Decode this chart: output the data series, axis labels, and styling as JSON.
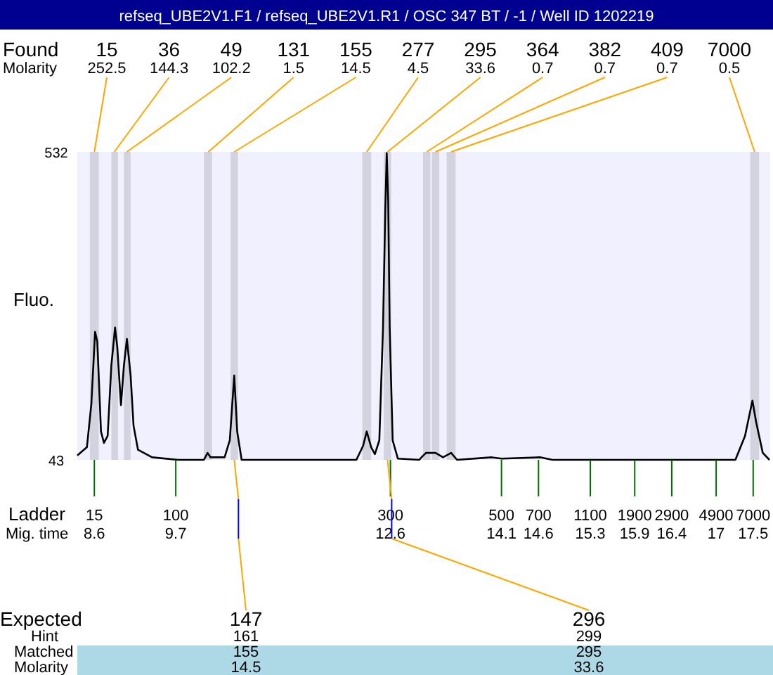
{
  "chart_data": {
    "type": "line",
    "title": "refseq_UBE2V1.F1 / refseq_UBE2V1.R1 / OSC 347 BT / -1 / Well ID 1202219",
    "ylabel": "Fluo.",
    "x": [
      8.37,
      8.5,
      8.56,
      8.61,
      8.64,
      8.69,
      8.73,
      8.78,
      8.83,
      8.88,
      8.91,
      8.96,
      9.0,
      9.04,
      9.09,
      9.13,
      9.19,
      9.38,
      9.73,
      10.08,
      10.13,
      10.17,
      10.36,
      10.43,
      10.49,
      10.53,
      10.59,
      12.14,
      12.23,
      12.28,
      12.34,
      12.39,
      12.45,
      12.5,
      12.53,
      12.55,
      12.57,
      12.59,
      12.63,
      12.7,
      12.99,
      13.02,
      13.08,
      13.21,
      13.31,
      13.42,
      13.5,
      13.97,
      14.1,
      14.63,
      14.79,
      17.26,
      17.39,
      17.49,
      17.54,
      17.63,
      17.72
    ],
    "series": [
      {
        "color": "#000000",
        "values": [
          50,
          63,
          132,
          246,
          231,
          88,
          70,
          81,
          193,
          253,
          222,
          130,
          193,
          235,
          177,
          97,
          59,
          47,
          43,
          43,
          54,
          47,
          47,
          74,
          177,
          88,
          43,
          43,
          65,
          88,
          63,
          52,
          74,
          253,
          438,
          530,
          454,
          253,
          74,
          45,
          43,
          47,
          54,
          54,
          47,
          54,
          43,
          47,
          45,
          47,
          43,
          43,
          81,
          137,
          103,
          54,
          43
        ]
      }
    ],
    "xlim": [
      8.37,
      17.73
    ],
    "ylim": [
      43,
      532
    ],
    "yticks": [
      43,
      532
    ],
    "xticks": [
      8.6,
      9.7,
      12.6,
      14.1,
      14.6,
      15.3,
      15.9,
      16.4,
      17,
      17.5
    ],
    "marker": "none",
    "line_style": "solid",
    "grid": false,
    "bands": [
      {
        "axis": "x",
        "from": 8.54,
        "to": 8.66,
        "label": "15",
        "color": "#d3d3e0"
      },
      {
        "axis": "x",
        "from": 8.83,
        "to": 8.92,
        "label": "36",
        "color": "#d3d3e0"
      },
      {
        "axis": "x",
        "from": 9.0,
        "to": 9.09,
        "label": "49",
        "color": "#d3d3e0"
      },
      {
        "axis": "x",
        "from": 10.08,
        "to": 10.19,
        "label": "131",
        "color": "#d3d3e0"
      },
      {
        "axis": "x",
        "from": 10.44,
        "to": 10.54,
        "label": "155",
        "color": "#d3d3e0"
      },
      {
        "axis": "x",
        "from": 12.22,
        "to": 12.34,
        "label": "277",
        "color": "#d3d3e0"
      },
      {
        "axis": "x",
        "from": 12.51,
        "to": 12.61,
        "label": "295",
        "color": "#d3d3e0"
      },
      {
        "axis": "x",
        "from": 13.04,
        "to": 13.14,
        "label": "364",
        "color": "#d3d3e0"
      },
      {
        "axis": "x",
        "from": 13.16,
        "to": 13.26,
        "label": "382",
        "color": "#d3d3e0"
      },
      {
        "axis": "x",
        "from": 13.36,
        "to": 13.48,
        "label": "409",
        "color": "#d3d3e0"
      },
      {
        "axis": "x",
        "from": 17.46,
        "to": 17.58,
        "label": "7000",
        "color": "#d3d3e0"
      }
    ],
    "annotations": [
      "Found",
      "Molarity",
      "Ladder",
      "Mig. time",
      "Expected",
      "Hint",
      "Matched",
      "Molarity",
      {
        "text": "252.5",
        "x": 8.6,
        "y": 532
      },
      {
        "text": "144.3",
        "x": 8.87,
        "y": 532
      },
      {
        "text": "102.2",
        "x": 9.04,
        "y": 532
      },
      {
        "text": "1.5",
        "x": 10.14,
        "y": 532
      },
      {
        "text": "14.5",
        "x": 10.49,
        "y": 532
      },
      {
        "text": "4.5",
        "x": 12.28,
        "y": 532
      },
      {
        "text": "33.6",
        "x": 12.56,
        "y": 532
      },
      {
        "text": "0.7",
        "x": 13.09,
        "y": 532
      },
      {
        "text": "0.7",
        "x": 13.21,
        "y": 532
      },
      {
        "text": "0.7",
        "x": 13.42,
        "y": 532
      },
      {
        "text": "0.5",
        "x": 17.52,
        "y": 532
      },
      "15",
      "100",
      "300",
      "500",
      "700",
      "1100",
      "1900",
      "2900",
      "4900",
      "7000",
      "147",
      "161",
      "155",
      "14.5",
      "296",
      "299",
      "295",
      "33.6"
    ]
  }
}
